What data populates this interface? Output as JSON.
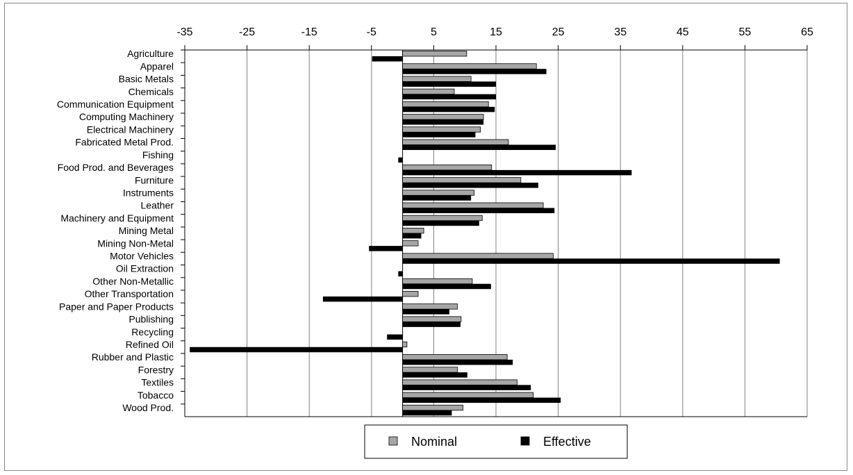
{
  "colors": {
    "nominal": "#a6a6a6",
    "effective": "#000000",
    "grid": "#808080",
    "axis": "#000000"
  },
  "chart_data": {
    "type": "bar",
    "orientation": "horizontal",
    "title": "",
    "xlabel": "",
    "ylabel": "",
    "xlim": [
      -35,
      65
    ],
    "xticks": [
      -35,
      -25,
      -15,
      -5,
      5,
      15,
      25,
      35,
      45,
      55,
      65
    ],
    "x_axis_position": "top",
    "grid": true,
    "legend": "bottom",
    "categories": [
      "Agriculture",
      "Apparel",
      "Basic Metals",
      "Chemicals",
      "Communication Equipment",
      "Computing Machinery",
      "Electrical Machinery",
      "Fabricated Metal Prod.",
      "Fishing",
      "Food Prod. and Beverages",
      "Furniture",
      "Instruments",
      "Leather",
      "Machinery and Equipment",
      "Mining Metal",
      "Mining Non-Metal",
      "Motor Vehicles",
      "Oil Extraction",
      "Other Non-Metallic",
      "Other Transportation",
      "Paper and Paper Products",
      "Publishing",
      "Recycling",
      "Refined Oil",
      "Rubber and Plastic",
      "Forestry",
      "Textiles",
      "Tobacco",
      "Wood Prod."
    ],
    "series": [
      {
        "name": "Nominal",
        "values": [
          10.3,
          21.5,
          11.0,
          8.3,
          13.8,
          13.0,
          12.5,
          17.0,
          0,
          14.3,
          19.0,
          11.5,
          22.6,
          12.8,
          3.4,
          2.5,
          24.2,
          0,
          11.2,
          2.5,
          8.8,
          9.4,
          0,
          0.7,
          16.8,
          8.8,
          18.4,
          21.0,
          9.7
        ]
      },
      {
        "name": "Effective",
        "values": [
          -4.9,
          23.1,
          15.0,
          15.0,
          14.8,
          13.0,
          11.7,
          24.6,
          -0.7,
          36.8,
          21.8,
          11.0,
          24.4,
          12.3,
          3.0,
          -5.4,
          60.6,
          -0.7,
          14.2,
          -12.8,
          7.5,
          9.3,
          -2.5,
          -34.2,
          17.7,
          10.4,
          20.6,
          25.4,
          7.9
        ]
      }
    ]
  }
}
